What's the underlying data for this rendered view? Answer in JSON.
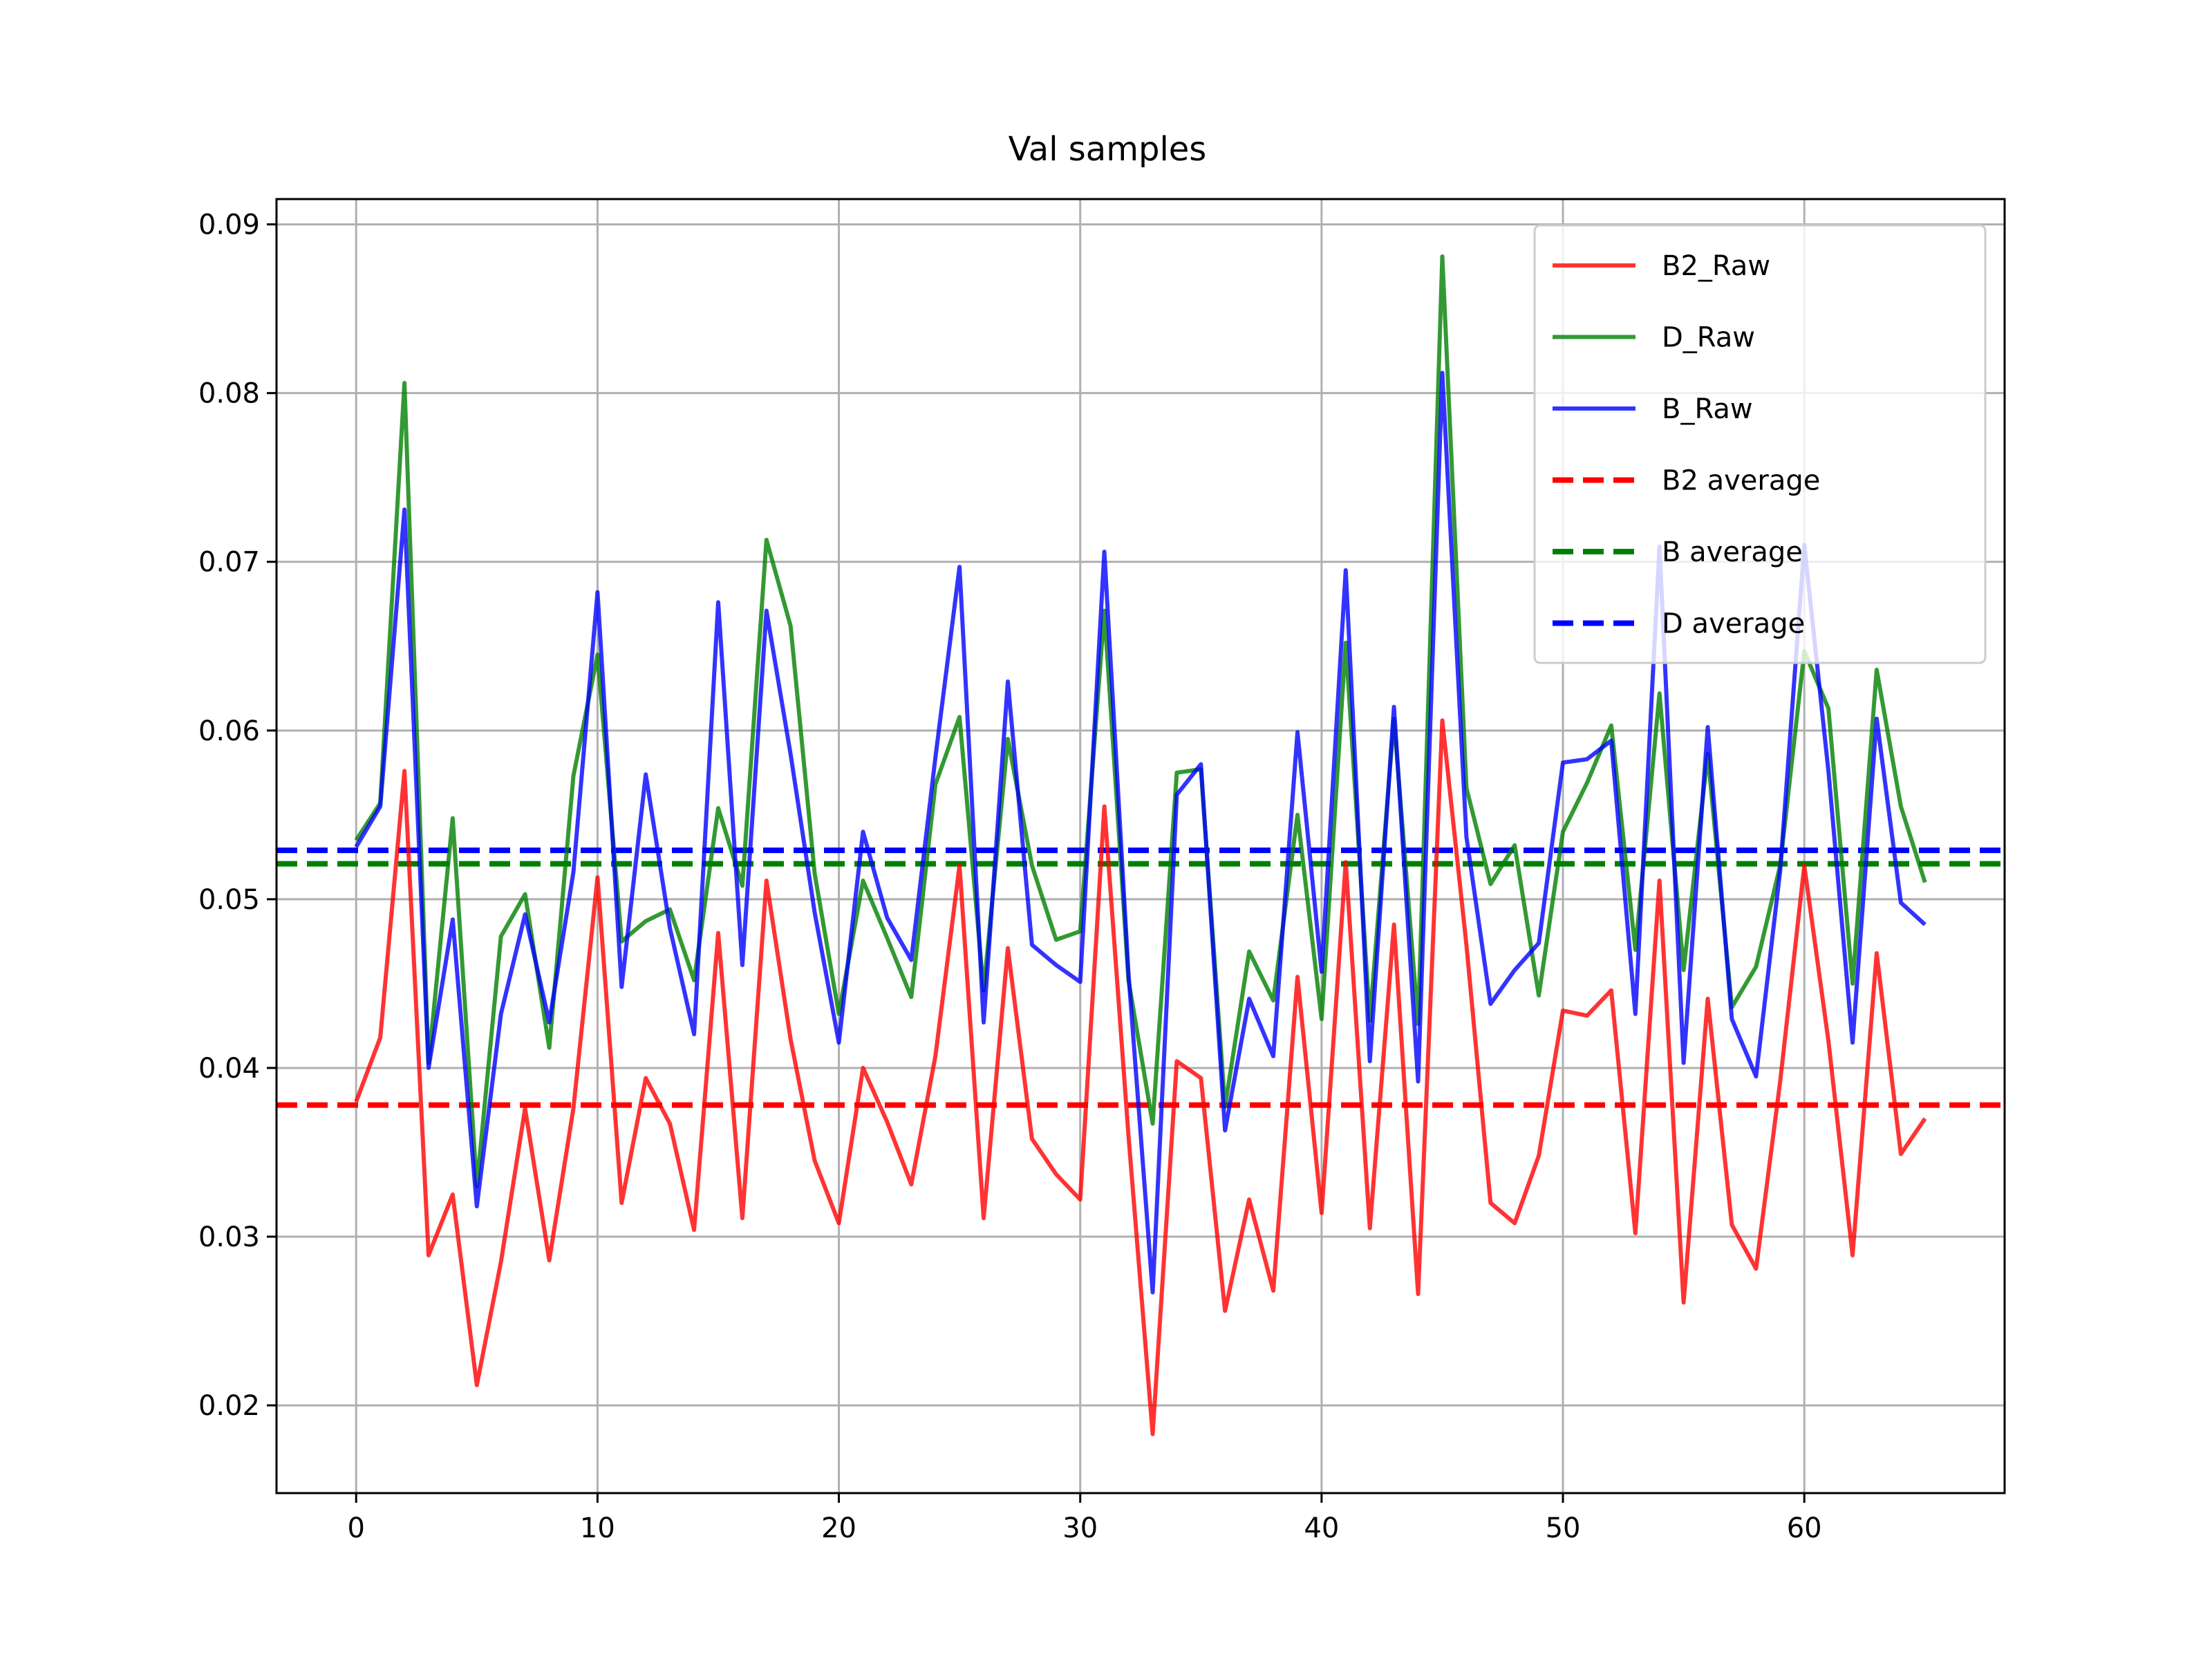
{
  "chart_data": {
    "type": "line",
    "title": "Val samples",
    "xlabel": "",
    "ylabel": "",
    "xlim": [
      -3.3,
      68.3
    ],
    "ylim": [
      0.0148,
      0.0915
    ],
    "xticks": [
      0,
      10,
      20,
      30,
      40,
      50,
      60
    ],
    "xtick_labels": [
      "0",
      "10",
      "20",
      "30",
      "40",
      "50",
      "60"
    ],
    "yticks": [
      0.02,
      0.03,
      0.04,
      0.05,
      0.06,
      0.07,
      0.08,
      0.09
    ],
    "ytick_labels": [
      "0.02",
      "0.03",
      "0.04",
      "0.05",
      "0.06",
      "0.07",
      "0.08",
      "0.09"
    ],
    "grid": true,
    "legend_position": "upper right",
    "x": [
      0,
      1,
      2,
      3,
      4,
      5,
      6,
      7,
      8,
      9,
      10,
      11,
      12,
      13,
      14,
      15,
      16,
      17,
      18,
      19,
      20,
      21,
      22,
      23,
      24,
      25,
      26,
      27,
      28,
      29,
      30,
      31,
      32,
      33,
      34,
      35,
      36,
      37,
      38,
      39,
      40,
      41,
      42,
      43,
      44,
      45,
      46,
      47,
      48,
      49,
      50,
      51,
      52,
      53,
      54,
      55,
      56,
      57,
      58,
      59,
      60,
      61,
      62,
      63,
      64,
      65
    ],
    "series": [
      {
        "name": "B2_Raw",
        "color": "#ff0000",
        "style": "solid",
        "opacity": 0.8,
        "values": [
          0.038,
          0.0418,
          0.0576,
          0.0289,
          0.0325,
          0.0212,
          0.0285,
          0.0376,
          0.0286,
          0.0376,
          0.0513,
          0.032,
          0.0394,
          0.0367,
          0.0304,
          0.048,
          0.0311,
          0.0511,
          0.0417,
          0.0345,
          0.0308,
          0.04,
          0.0368,
          0.0331,
          0.0407,
          0.052,
          0.0311,
          0.0471,
          0.0358,
          0.0337,
          0.0322,
          0.0555,
          0.036,
          0.0183,
          0.0404,
          0.0394,
          0.0256,
          0.0322,
          0.0268,
          0.0454,
          0.0314,
          0.0522,
          0.0305,
          0.0485,
          0.0266,
          0.0606,
          0.0473,
          0.032,
          0.0308,
          0.0348,
          0.0434,
          0.0431,
          0.0446,
          0.0302,
          0.0511,
          0.0261,
          0.0441,
          0.0307,
          0.0281,
          0.0392,
          0.052,
          0.0416,
          0.0289,
          0.0468,
          0.0349,
          0.037
        ]
      },
      {
        "name": "D_Raw",
        "color": "#008000",
        "style": "solid",
        "opacity": 0.8,
        "values": [
          0.0535,
          0.0557,
          0.0806,
          0.0403,
          0.0548,
          0.033,
          0.0478,
          0.0503,
          0.0412,
          0.0573,
          0.0645,
          0.0475,
          0.0487,
          0.0494,
          0.0452,
          0.0554,
          0.0508,
          0.0713,
          0.0662,
          0.0515,
          0.0432,
          0.0511,
          0.0477,
          0.0442,
          0.0568,
          0.0608,
          0.0446,
          0.0595,
          0.052,
          0.0476,
          0.0481,
          0.0671,
          0.0452,
          0.0367,
          0.0575,
          0.0577,
          0.0377,
          0.0469,
          0.044,
          0.055,
          0.0429,
          0.0652,
          0.0428,
          0.0607,
          0.0426,
          0.0881,
          0.0566,
          0.0509,
          0.0532,
          0.0443,
          0.054,
          0.0569,
          0.0603,
          0.047,
          0.0622,
          0.0458,
          0.0586,
          0.0436,
          0.046,
          0.052,
          0.0647,
          0.0613,
          0.045,
          0.0636,
          0.0555,
          0.051
        ]
      },
      {
        "name": "B_Raw",
        "color": "#0000ff",
        "style": "solid",
        "opacity": 0.8,
        "values": [
          0.0531,
          0.0555,
          0.0731,
          0.04,
          0.0488,
          0.0318,
          0.0432,
          0.0491,
          0.0427,
          0.0516,
          0.0682,
          0.0448,
          0.0574,
          0.0483,
          0.042,
          0.0676,
          0.0461,
          0.0671,
          0.0586,
          0.0492,
          0.0415,
          0.054,
          0.0489,
          0.0464,
          0.0584,
          0.0697,
          0.0427,
          0.0629,
          0.0473,
          0.0461,
          0.0451,
          0.0706,
          0.0456,
          0.0267,
          0.0562,
          0.058,
          0.0363,
          0.0441,
          0.0407,
          0.0599,
          0.0457,
          0.0695,
          0.0404,
          0.0614,
          0.0392,
          0.0812,
          0.0537,
          0.0438,
          0.0458,
          0.0474,
          0.0581,
          0.0583,
          0.0594,
          0.0432,
          0.0709,
          0.0403,
          0.0602,
          0.0429,
          0.0395,
          0.0517,
          0.071,
          0.0576,
          0.0415,
          0.0607,
          0.0498,
          0.0485
        ]
      },
      {
        "name": "B2 average",
        "color": "#ff0000",
        "style": "dashed",
        "value": 0.0378
      },
      {
        "name": "B average",
        "color": "#008000",
        "style": "dashed",
        "value": 0.0521
      },
      {
        "name": "D average",
        "color": "#0000ff",
        "style": "dashed",
        "value": 0.0529
      }
    ]
  }
}
